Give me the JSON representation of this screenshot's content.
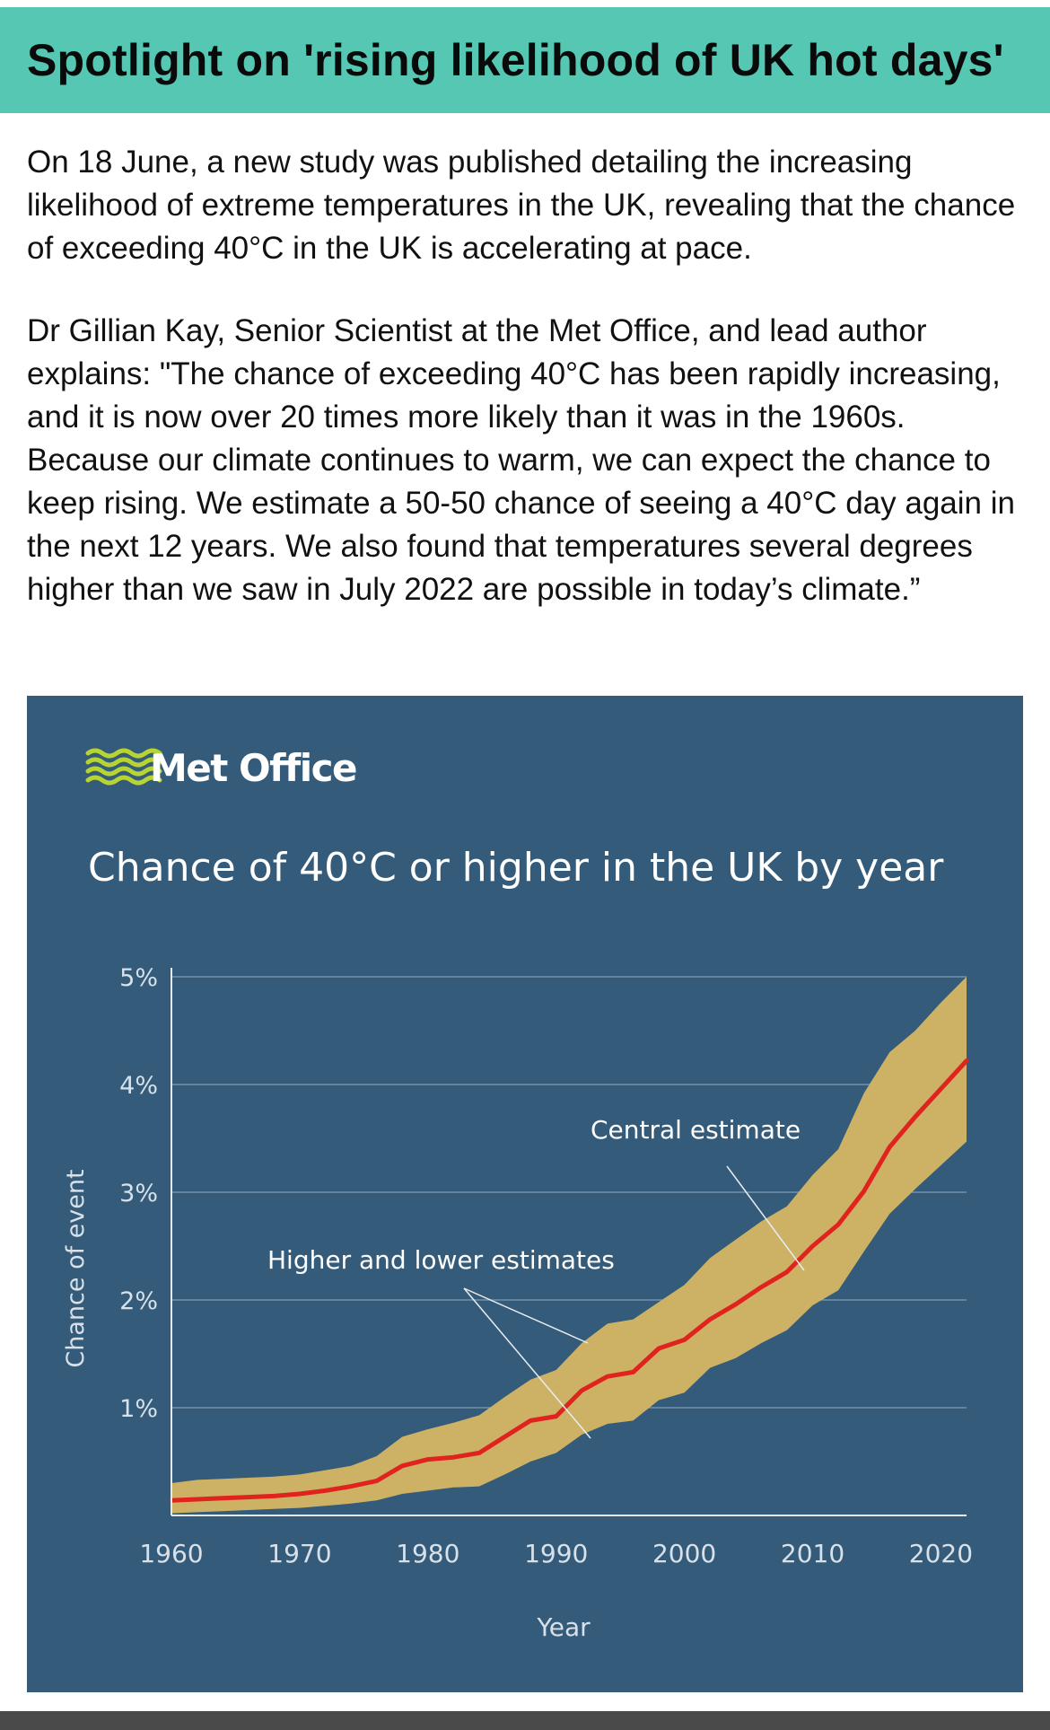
{
  "header": {
    "title": "Spotlight on 'rising likelihood of UK hot days'"
  },
  "article": {
    "paragraph1": "On 18 June, a new study was published detailing the increasing likelihood of extreme temperatures in the UK, revealing that the chance of exceeding 40°C in the UK is accelerating at pace.",
    "paragraph2": "Dr Gillian Kay, Senior Scientist at the Met Office, and lead author explains: \"The chance of exceeding 40°C has been rapidly increasing, and it is now over 20 times more likely than it was in the 1960s. Because our climate continues to warm, we can expect the chance to keep rising. We estimate a 50-50 chance of seeing a 40°C day again in the next 12 years. We also found that temperatures several degrees higher than we saw in July 2022 are possible in today’s climate.”"
  },
  "colors": {
    "header_bg": "#55c7b3",
    "chart_bg": "#345b79",
    "band": "#cdb265",
    "central_line": "#e0231f",
    "logo_green": "#b8d432"
  },
  "chart_data": {
    "type": "area",
    "logo": "Met Office",
    "title": "Chance of 40°C or higher in the UK by year",
    "xlabel": "Year",
    "ylabel": "Chance of event",
    "xlim": [
      1960,
      2022
    ],
    "ylim": [
      0,
      5
    ],
    "x_ticks": [
      1960,
      1970,
      1980,
      1990,
      2000,
      2010,
      2020
    ],
    "x_tick_labels": [
      "1960",
      "1970",
      "1980",
      "1990",
      "2000",
      "2010",
      "2020"
    ],
    "y_ticks": [
      1,
      2,
      3,
      4,
      5
    ],
    "y_tick_labels": [
      "1%",
      "2%",
      "3%",
      "4%",
      "5%"
    ],
    "grid": "horizontal",
    "annotations": [
      {
        "text": "Central estimate",
        "target": "central"
      },
      {
        "text": "Higher and lower estimates",
        "target": "band"
      }
    ],
    "x": [
      1960,
      1962,
      1964,
      1966,
      1968,
      1970,
      1972,
      1974,
      1976,
      1978,
      1980,
      1982,
      1984,
      1986,
      1988,
      1990,
      1992,
      1994,
      1996,
      1998,
      2000,
      2002,
      2004,
      2006,
      2008,
      2010,
      2012,
      2014,
      2016,
      2018,
      2020,
      2022
    ],
    "series": [
      {
        "name": "Higher estimate",
        "values": [
          0.3,
          0.33,
          0.34,
          0.35,
          0.36,
          0.38,
          0.42,
          0.46,
          0.55,
          0.73,
          0.8,
          0.86,
          0.93,
          1.1,
          1.26,
          1.35,
          1.6,
          1.78,
          1.82,
          1.98,
          2.14,
          2.39,
          2.56,
          2.73,
          2.87,
          3.16,
          3.4,
          3.92,
          4.3,
          4.5,
          4.76,
          5.0
        ]
      },
      {
        "name": "Central estimate",
        "values": [
          0.14,
          0.15,
          0.16,
          0.17,
          0.18,
          0.2,
          0.23,
          0.27,
          0.32,
          0.46,
          0.52,
          0.54,
          0.58,
          0.73,
          0.88,
          0.92,
          1.16,
          1.29,
          1.33,
          1.55,
          1.63,
          1.82,
          1.96,
          2.12,
          2.26,
          2.5,
          2.7,
          3.01,
          3.42,
          3.7,
          3.96,
          4.22
        ]
      },
      {
        "name": "Lower estimate",
        "values": [
          0.02,
          0.03,
          0.04,
          0.05,
          0.06,
          0.07,
          0.09,
          0.11,
          0.14,
          0.2,
          0.23,
          0.26,
          0.27,
          0.38,
          0.5,
          0.58,
          0.75,
          0.85,
          0.88,
          1.07,
          1.14,
          1.37,
          1.46,
          1.6,
          1.72,
          1.95,
          2.09,
          2.45,
          2.8,
          3.03,
          3.25,
          3.47
        ]
      }
    ]
  }
}
